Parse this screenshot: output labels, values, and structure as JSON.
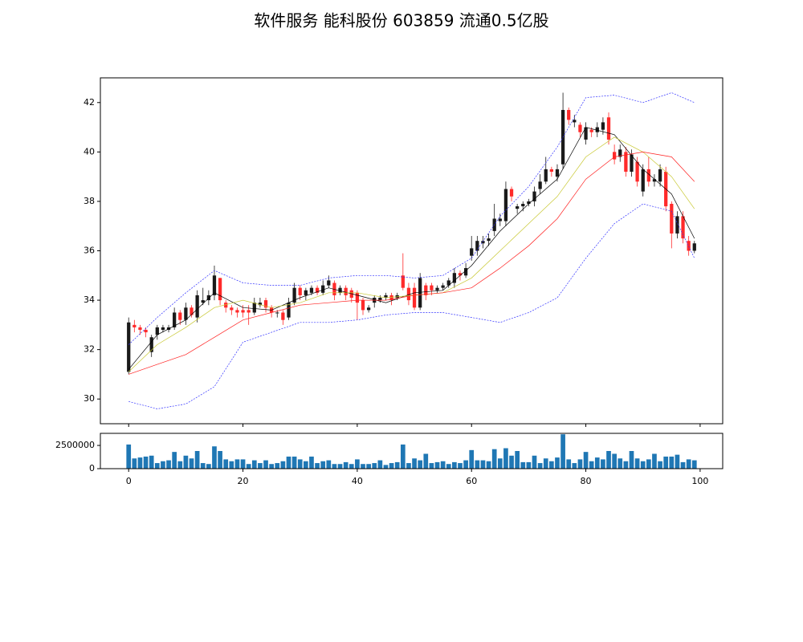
{
  "chart_data": [
    {
      "type": "candlestick",
      "title": "软件服务 能科股份 603859 流通0.5亿股",
      "up_color": "#1a1a1a",
      "down_color": "#ff2a2a",
      "xlim": [
        -4.95,
        103.95
      ],
      "ylim": [
        29,
        43
      ],
      "yticks": [
        30,
        32,
        34,
        36,
        38,
        40,
        42
      ],
      "x": [
        0,
        1,
        2,
        3,
        4,
        5,
        6,
        7,
        8,
        9,
        10,
        11,
        12,
        13,
        14,
        15,
        16,
        17,
        18,
        19,
        20,
        21,
        22,
        23,
        24,
        25,
        26,
        27,
        28,
        29,
        30,
        31,
        32,
        33,
        34,
        35,
        36,
        37,
        38,
        39,
        40,
        41,
        42,
        43,
        44,
        45,
        46,
        47,
        48,
        49,
        50,
        51,
        52,
        53,
        54,
        55,
        56,
        57,
        58,
        59,
        60,
        61,
        62,
        63,
        64,
        65,
        66,
        67,
        68,
        69,
        70,
        71,
        72,
        73,
        74,
        75,
        76,
        77,
        78,
        79,
        80,
        81,
        82,
        83,
        84,
        85,
        86,
        87,
        88,
        89,
        90,
        91,
        92,
        93,
        94,
        95,
        96,
        97,
        98,
        99
      ],
      "open": [
        31.1,
        33.0,
        32.9,
        32.8,
        31.9,
        32.6,
        32.8,
        32.8,
        32.9,
        33.5,
        33.2,
        33.7,
        33.3,
        33.9,
        34.0,
        34.2,
        34.9,
        33.9,
        33.7,
        33.6,
        33.6,
        33.6,
        33.5,
        33.8,
        34.0,
        33.7,
        33.5,
        33.5,
        33.3,
        33.9,
        34.5,
        34.2,
        34.3,
        34.5,
        34.3,
        34.6,
        34.7,
        34.3,
        34.5,
        34.4,
        34.3,
        34.0,
        33.6,
        33.9,
        34.0,
        34.1,
        34.2,
        34.1,
        35.0,
        34.5,
        34.5,
        33.7,
        34.6,
        34.6,
        34.4,
        34.5,
        34.6,
        34.7,
        35.1,
        35.0,
        35.8,
        36.0,
        36.3,
        36.4,
        36.8,
        37.2,
        37.2,
        38.5,
        37.7,
        37.8,
        37.9,
        38.0,
        38.5,
        38.8,
        39.3,
        39.0,
        39.5,
        41.7,
        41.2,
        41.1,
        40.5,
        40.9,
        40.8,
        40.9,
        41.4,
        40.0,
        39.8,
        40.0,
        39.2,
        39.6,
        38.4,
        39.3,
        38.8,
        38.8,
        39.2,
        37.9,
        36.7,
        37.4,
        36.4,
        36.0
      ],
      "high": [
        33.3,
        33.2,
        33.0,
        32.9,
        32.6,
        33.0,
        33.0,
        33.0,
        33.7,
        33.6,
        33.9,
        33.8,
        34.4,
        34.5,
        34.4,
        35.4,
        34.9,
        34.0,
        33.8,
        33.7,
        33.8,
        33.8,
        34.1,
        34.1,
        34.1,
        33.8,
        33.6,
        33.6,
        34.1,
        34.7,
        34.6,
        34.5,
        34.6,
        34.6,
        34.8,
        35.0,
        34.8,
        34.6,
        34.6,
        34.5,
        34.4,
        34.1,
        33.8,
        34.2,
        34.2,
        34.3,
        34.3,
        34.3,
        35.9,
        34.7,
        34.7,
        35.1,
        34.7,
        34.7,
        34.6,
        34.7,
        34.9,
        35.3,
        35.2,
        35.5,
        36.6,
        36.6,
        36.6,
        36.7,
        37.9,
        37.5,
        38.8,
        38.6,
        37.9,
        38.0,
        38.1,
        38.6,
        39.1,
        39.8,
        39.4,
        39.5,
        42.4,
        41.8,
        41.5,
        41.2,
        41.2,
        41.0,
        41.2,
        41.4,
        41.6,
        40.3,
        40.3,
        40.2,
        40.1,
        39.8,
        39.5,
        39.8,
        39.1,
        39.5,
        39.4,
        38.0,
        37.6,
        37.6,
        36.6,
        36.4
      ],
      "low": [
        31.0,
        32.7,
        32.6,
        32.5,
        31.7,
        32.4,
        32.7,
        32.7,
        32.8,
        33.0,
        33.0,
        33.3,
        33.1,
        33.8,
        33.8,
        34.0,
        33.8,
        33.5,
        33.4,
        33.3,
        33.3,
        33.0,
        33.4,
        33.7,
        33.5,
        33.3,
        33.3,
        33.0,
        33.2,
        33.8,
        34.0,
        34.0,
        34.2,
        34.2,
        34.2,
        34.5,
        34.0,
        34.2,
        34.0,
        33.9,
        33.2,
        33.4,
        33.5,
        33.7,
        33.9,
        34.0,
        33.8,
        34.0,
        34.4,
        33.8,
        33.6,
        33.6,
        34.0,
        34.2,
        34.3,
        34.4,
        34.5,
        34.5,
        34.8,
        34.9,
        35.6,
        35.8,
        36.1,
        36.2,
        36.6,
        37.0,
        37.0,
        38.0,
        37.5,
        37.6,
        37.8,
        37.8,
        38.3,
        38.7,
        39.0,
        38.8,
        39.3,
        41.1,
        41.0,
        40.6,
        40.3,
        40.6,
        40.6,
        40.7,
        40.3,
        39.5,
        39.6,
        39.0,
        39.0,
        38.6,
        38.2,
        38.6,
        38.6,
        38.6,
        37.6,
        36.1,
        36.5,
        36.3,
        35.8,
        35.9
      ],
      "close": [
        33.1,
        32.9,
        32.8,
        32.7,
        32.5,
        32.9,
        32.9,
        32.9,
        33.5,
        33.2,
        33.7,
        33.4,
        34.2,
        34.0,
        34.2,
        35.0,
        34.0,
        33.7,
        33.6,
        33.5,
        33.5,
        33.5,
        33.9,
        33.9,
        33.7,
        33.5,
        33.5,
        33.2,
        33.9,
        34.5,
        34.2,
        34.4,
        34.5,
        34.3,
        34.6,
        34.8,
        34.2,
        34.5,
        34.2,
        34.1,
        33.9,
        33.6,
        33.7,
        34.1,
        34.1,
        34.2,
        34.0,
        34.2,
        34.5,
        34.0,
        33.7,
        34.9,
        34.2,
        34.4,
        34.5,
        34.6,
        34.8,
        35.1,
        35.0,
        35.3,
        36.1,
        36.4,
        36.4,
        36.5,
        37.3,
        37.3,
        38.5,
        38.2,
        37.8,
        37.9,
        38.0,
        38.4,
        38.8,
        39.3,
        39.2,
        39.3,
        41.7,
        41.3,
        41.3,
        40.8,
        41.0,
        40.8,
        41.0,
        41.2,
        40.5,
        39.7,
        40.1,
        39.2,
        39.9,
        38.8,
        39.3,
        38.8,
        38.9,
        39.3,
        37.8,
        36.7,
        37.4,
        36.5,
        36.0,
        36.3
      ],
      "lines": [
        {
          "color": "#000000",
          "dash": false,
          "x": [
            0,
            5,
            10,
            15,
            20,
            25,
            30,
            35,
            40,
            45,
            50,
            55,
            60,
            65,
            70,
            75,
            80,
            85,
            90,
            95,
            99
          ],
          "values": [
            31.2,
            32.6,
            33.2,
            34.3,
            33.7,
            33.6,
            34.1,
            34.5,
            34.2,
            33.9,
            34.3,
            34.4,
            35.4,
            36.8,
            37.9,
            38.9,
            41.0,
            40.7,
            39.3,
            38.3,
            36.5
          ]
        },
        {
          "color": "#c8c832",
          "dash": false,
          "x": [
            0,
            5,
            10,
            15,
            20,
            25,
            30,
            35,
            40,
            45,
            50,
            55,
            60,
            65,
            70,
            75,
            80,
            85,
            90,
            95,
            99
          ],
          "values": [
            31.1,
            32.2,
            32.9,
            33.7,
            34.0,
            33.7,
            33.9,
            34.3,
            34.3,
            34.1,
            34.2,
            34.3,
            34.9,
            36.0,
            37.1,
            38.2,
            39.8,
            40.6,
            40.0,
            39.0,
            37.7
          ]
        },
        {
          "color": "#ff2020",
          "dash": false,
          "x": [
            0,
            5,
            10,
            15,
            20,
            25,
            30,
            35,
            40,
            45,
            50,
            55,
            60,
            65,
            70,
            75,
            80,
            85,
            90,
            95,
            99
          ],
          "values": [
            31.0,
            31.4,
            31.8,
            32.5,
            33.2,
            33.5,
            33.8,
            33.9,
            34.0,
            34.0,
            34.2,
            34.3,
            34.5,
            35.3,
            36.2,
            37.3,
            38.9,
            39.8,
            40.0,
            39.8,
            38.8
          ]
        },
        {
          "color": "#3030ff",
          "dash": true,
          "x": [
            0,
            5,
            10,
            15,
            20,
            25,
            30,
            35,
            40,
            45,
            50,
            55,
            60,
            65,
            70,
            75,
            80,
            85,
            90,
            95,
            99
          ],
          "values": [
            32.2,
            33.3,
            34.3,
            35.2,
            34.7,
            34.6,
            34.6,
            34.9,
            35.0,
            35.0,
            34.9,
            35.0,
            35.7,
            37.4,
            38.6,
            40.2,
            42.2,
            42.3,
            42.0,
            42.4,
            42.0
          ]
        },
        {
          "color": "#3030ff",
          "dash": true,
          "x": [
            0,
            5,
            10,
            15,
            20,
            25,
            30,
            35,
            40,
            45,
            50,
            55,
            60,
            65,
            70,
            75,
            80,
            85,
            90,
            95,
            99
          ],
          "values": [
            29.9,
            29.6,
            29.8,
            30.5,
            32.3,
            32.7,
            33.1,
            33.1,
            33.2,
            33.4,
            33.5,
            33.5,
            33.3,
            33.1,
            33.5,
            34.1,
            35.7,
            37.1,
            37.9,
            37.6,
            35.7
          ]
        }
      ]
    },
    {
      "type": "bar",
      "color": "#1f77b4",
      "xlim": [
        -4.95,
        103.95
      ],
      "ylim": [
        0,
        3800000
      ],
      "xticks": [
        0,
        20,
        40,
        60,
        80,
        100
      ],
      "yticks": [
        0,
        2500000
      ],
      "x": [
        0,
        1,
        2,
        3,
        4,
        5,
        6,
        7,
        8,
        9,
        10,
        11,
        12,
        13,
        14,
        15,
        16,
        17,
        18,
        19,
        20,
        21,
        22,
        23,
        24,
        25,
        26,
        27,
        28,
        29,
        30,
        31,
        32,
        33,
        34,
        35,
        36,
        37,
        38,
        39,
        40,
        41,
        42,
        43,
        44,
        45,
        46,
        47,
        48,
        49,
        50,
        51,
        52,
        53,
        54,
        55,
        56,
        57,
        58,
        59,
        60,
        61,
        62,
        63,
        64,
        65,
        66,
        67,
        68,
        69,
        70,
        71,
        72,
        73,
        74,
        75,
        76,
        77,
        78,
        79,
        80,
        81,
        82,
        83,
        84,
        85,
        86,
        87,
        88,
        89,
        90,
        91,
        92,
        93,
        94,
        95,
        96,
        97,
        98,
        99
      ],
      "values": [
        2600000,
        1100000,
        1200000,
        1300000,
        1400000,
        600000,
        800000,
        900000,
        1800000,
        800000,
        1400000,
        1100000,
        1900000,
        600000,
        500000,
        2400000,
        1900000,
        1000000,
        800000,
        1000000,
        1000000,
        500000,
        900000,
        600000,
        900000,
        500000,
        600000,
        800000,
        1300000,
        1300000,
        1000000,
        800000,
        1300000,
        600000,
        800000,
        900000,
        500000,
        500000,
        700000,
        500000,
        1000000,
        500000,
        500000,
        600000,
        900000,
        400000,
        600000,
        700000,
        2600000,
        600000,
        1100000,
        900000,
        1600000,
        600000,
        700000,
        800000,
        500000,
        700000,
        600000,
        900000,
        2000000,
        900000,
        900000,
        800000,
        2100000,
        1100000,
        2200000,
        1400000,
        1900000,
        700000,
        700000,
        1400000,
        600000,
        1100000,
        800000,
        1200000,
        3700000,
        1000000,
        600000,
        1000000,
        1800000,
        800000,
        1200000,
        1000000,
        1900000,
        1600000,
        1100000,
        800000,
        1900000,
        1100000,
        800000,
        1000000,
        1600000,
        800000,
        1300000,
        1300000,
        1500000,
        700000,
        1000000,
        900000
      ]
    }
  ]
}
